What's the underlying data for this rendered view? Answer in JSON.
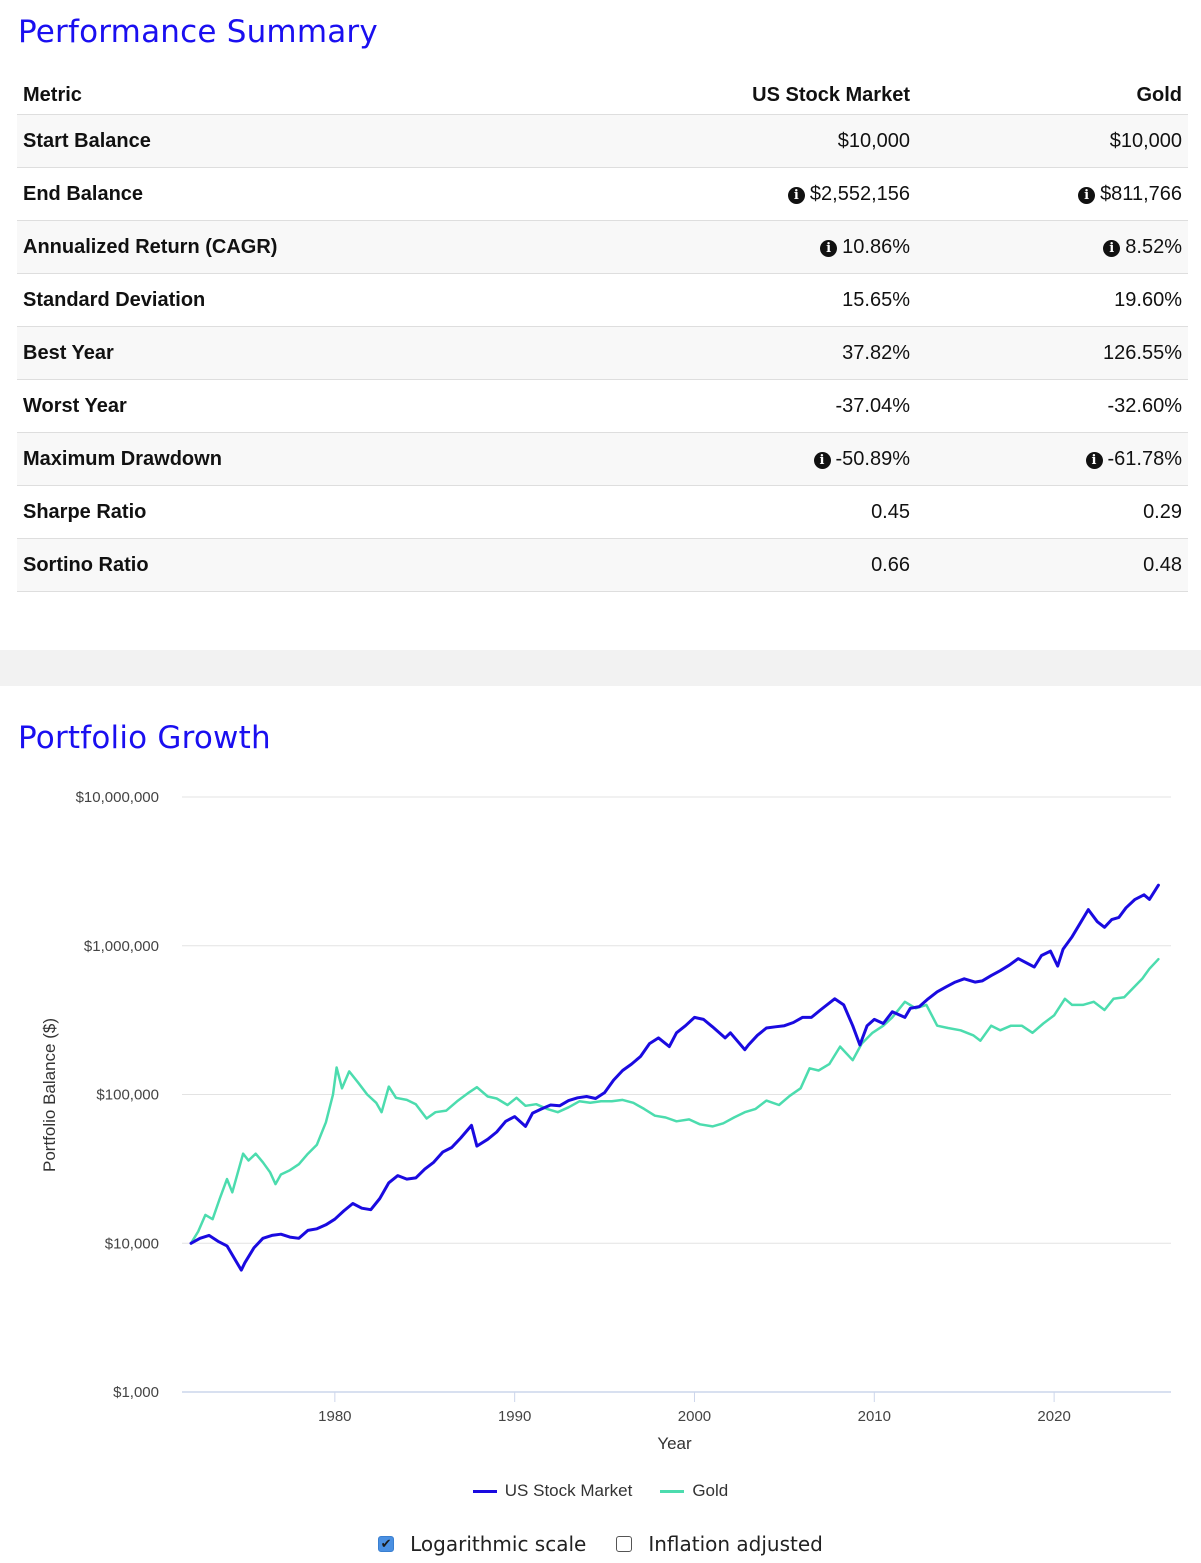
{
  "performance_summary": {
    "title": "Performance Summary",
    "columns": [
      "Metric",
      "US Stock Market",
      "Gold"
    ],
    "rows": [
      {
        "metric": "Start Balance",
        "us": "$10,000",
        "gold": "$10,000",
        "info": false
      },
      {
        "metric": "End Balance",
        "us": "$2,552,156",
        "gold": "$811,766",
        "info": true
      },
      {
        "metric": "Annualized Return (CAGR)",
        "us": "10.86%",
        "gold": "8.52%",
        "info": true
      },
      {
        "metric": "Standard Deviation",
        "us": "15.65%",
        "gold": "19.60%",
        "info": false
      },
      {
        "metric": "Best Year",
        "us": "37.82%",
        "gold": "126.55%",
        "info": false
      },
      {
        "metric": "Worst Year",
        "us": "-37.04%",
        "gold": "-32.60%",
        "info": false
      },
      {
        "metric": "Maximum Drawdown",
        "us": "-50.89%",
        "gold": "-61.78%",
        "info": true
      },
      {
        "metric": "Sharpe Ratio",
        "us": "0.45",
        "gold": "0.29",
        "info": false
      },
      {
        "metric": "Sortino Ratio",
        "us": "0.66",
        "gold": "0.48",
        "info": false
      }
    ],
    "info_icon": "info-circle-icon"
  },
  "portfolio_growth": {
    "title": "Portfolio Growth",
    "controls": {
      "log_scale": {
        "label": "Logarithmic scale",
        "checked": true
      },
      "inflation": {
        "label": "Inflation adjusted",
        "checked": false
      }
    }
  },
  "colors": {
    "title": "#1a0ff0",
    "us_stock": "#1a0ae0",
    "gold": "#4cdcae",
    "grid": "#e3e3e3",
    "axis": "#ccd6eb"
  },
  "chart_data": {
    "type": "line",
    "title": "Portfolio Growth",
    "xlabel": "Year",
    "ylabel": "Portfolio Balance ($)",
    "yscale": "log",
    "ylim": [
      1000,
      10000000
    ],
    "xlim": [
      1971.5,
      2026.5
    ],
    "x_ticks": [
      1980,
      1990,
      2000,
      2010,
      2020
    ],
    "x_tick_labels": [
      "1980",
      "1990",
      "2000",
      "2010",
      "2020"
    ],
    "y_ticks": [
      1000,
      10000,
      100000,
      1000000,
      10000000
    ],
    "y_tick_labels": [
      "$1,000",
      "$10,000",
      "$100,000",
      "$1,000,000",
      "$10,000,000"
    ],
    "grid": true,
    "legend": "bottom-center",
    "series": [
      {
        "name": "US Stock Market",
        "color": "#1a0ae0",
        "points": [
          [
            1972.0,
            10000
          ],
          [
            1972.5,
            10800
          ],
          [
            1973.0,
            11300
          ],
          [
            1973.5,
            10300
          ],
          [
            1974.0,
            9600
          ],
          [
            1974.5,
            7600
          ],
          [
            1974.8,
            6600
          ],
          [
            1975.0,
            7400
          ],
          [
            1975.5,
            9300
          ],
          [
            1976.0,
            10800
          ],
          [
            1976.5,
            11300
          ],
          [
            1977.0,
            11500
          ],
          [
            1977.5,
            11000
          ],
          [
            1978.0,
            10800
          ],
          [
            1978.5,
            12200
          ],
          [
            1979.0,
            12500
          ],
          [
            1979.5,
            13300
          ],
          [
            1980.0,
            14500
          ],
          [
            1980.5,
            16500
          ],
          [
            1981.0,
            18500
          ],
          [
            1981.5,
            17200
          ],
          [
            1982.0,
            16800
          ],
          [
            1982.5,
            20000
          ],
          [
            1983.0,
            25500
          ],
          [
            1983.5,
            28500
          ],
          [
            1984.0,
            27000
          ],
          [
            1984.5,
            27500
          ],
          [
            1985.0,
            31500
          ],
          [
            1985.5,
            35000
          ],
          [
            1986.0,
            41000
          ],
          [
            1986.5,
            44000
          ],
          [
            1987.0,
            51000
          ],
          [
            1987.6,
            62000
          ],
          [
            1987.9,
            45000
          ],
          [
            1988.5,
            50000
          ],
          [
            1989.0,
            56000
          ],
          [
            1989.5,
            66000
          ],
          [
            1990.0,
            71000
          ],
          [
            1990.6,
            61000
          ],
          [
            1991.0,
            75000
          ],
          [
            1991.5,
            80000
          ],
          [
            1992.0,
            85000
          ],
          [
            1992.5,
            84000
          ],
          [
            1993.0,
            91000
          ],
          [
            1993.5,
            95000
          ],
          [
            1994.0,
            97000
          ],
          [
            1994.5,
            94000
          ],
          [
            1995.0,
            103000
          ],
          [
            1995.5,
            125000
          ],
          [
            1996.0,
            145000
          ],
          [
            1996.5,
            160000
          ],
          [
            1997.0,
            180000
          ],
          [
            1997.5,
            220000
          ],
          [
            1998.0,
            240000
          ],
          [
            1998.6,
            210000
          ],
          [
            1999.0,
            260000
          ],
          [
            1999.5,
            290000
          ],
          [
            2000.0,
            330000
          ],
          [
            2000.5,
            320000
          ],
          [
            2001.0,
            285000
          ],
          [
            2001.7,
            240000
          ],
          [
            2002.0,
            260000
          ],
          [
            2002.8,
            200000
          ],
          [
            2003.0,
            215000
          ],
          [
            2003.5,
            250000
          ],
          [
            2004.0,
            280000
          ],
          [
            2004.5,
            285000
          ],
          [
            2005.0,
            290000
          ],
          [
            2005.5,
            305000
          ],
          [
            2006.0,
            330000
          ],
          [
            2006.5,
            330000
          ],
          [
            2007.0,
            370000
          ],
          [
            2007.8,
            440000
          ],
          [
            2008.3,
            400000
          ],
          [
            2008.8,
            290000
          ],
          [
            2009.2,
            215000
          ],
          [
            2009.6,
            290000
          ],
          [
            2010.0,
            320000
          ],
          [
            2010.5,
            300000
          ],
          [
            2011.0,
            360000
          ],
          [
            2011.7,
            330000
          ],
          [
            2012.0,
            380000
          ],
          [
            2012.5,
            390000
          ],
          [
            2013.0,
            440000
          ],
          [
            2013.5,
            490000
          ],
          [
            2014.0,
            530000
          ],
          [
            2014.5,
            570000
          ],
          [
            2015.0,
            600000
          ],
          [
            2015.6,
            570000
          ],
          [
            2016.0,
            580000
          ],
          [
            2016.5,
            630000
          ],
          [
            2017.0,
            680000
          ],
          [
            2017.5,
            740000
          ],
          [
            2018.0,
            820000
          ],
          [
            2018.9,
            720000
          ],
          [
            2019.3,
            860000
          ],
          [
            2019.8,
            920000
          ],
          [
            2020.2,
            730000
          ],
          [
            2020.5,
            950000
          ],
          [
            2021.0,
            1150000
          ],
          [
            2021.5,
            1450000
          ],
          [
            2021.9,
            1750000
          ],
          [
            2022.4,
            1450000
          ],
          [
            2022.8,
            1330000
          ],
          [
            2023.2,
            1500000
          ],
          [
            2023.6,
            1550000
          ],
          [
            2024.0,
            1800000
          ],
          [
            2024.5,
            2050000
          ],
          [
            2025.0,
            2200000
          ],
          [
            2025.3,
            2050000
          ],
          [
            2025.8,
            2552156
          ]
        ]
      },
      {
        "name": "Gold",
        "color": "#4cdcae",
        "points": [
          [
            1972.0,
            10000
          ],
          [
            1972.4,
            12000
          ],
          [
            1972.8,
            15500
          ],
          [
            1973.2,
            14500
          ],
          [
            1973.6,
            20000
          ],
          [
            1974.0,
            27000
          ],
          [
            1974.3,
            22000
          ],
          [
            1974.9,
            40000
          ],
          [
            1975.2,
            36000
          ],
          [
            1975.6,
            40000
          ],
          [
            1976.0,
            35000
          ],
          [
            1976.4,
            30000
          ],
          [
            1976.7,
            25000
          ],
          [
            1977.0,
            29000
          ],
          [
            1977.5,
            31000
          ],
          [
            1978.0,
            34000
          ],
          [
            1978.5,
            40000
          ],
          [
            1979.0,
            46000
          ],
          [
            1979.5,
            65000
          ],
          [
            1979.9,
            100000
          ],
          [
            1980.1,
            152000
          ],
          [
            1980.4,
            110000
          ],
          [
            1980.8,
            143000
          ],
          [
            1981.3,
            120000
          ],
          [
            1981.8,
            100000
          ],
          [
            1982.3,
            88000
          ],
          [
            1982.6,
            76000
          ],
          [
            1983.0,
            113000
          ],
          [
            1983.4,
            95000
          ],
          [
            1984.0,
            92000
          ],
          [
            1984.5,
            86000
          ],
          [
            1985.1,
            69000
          ],
          [
            1985.6,
            76000
          ],
          [
            1986.2,
            78000
          ],
          [
            1986.8,
            90000
          ],
          [
            1987.4,
            102000
          ],
          [
            1987.9,
            112000
          ],
          [
            1988.5,
            97000
          ],
          [
            1989.0,
            94000
          ],
          [
            1989.6,
            85000
          ],
          [
            1990.1,
            95000
          ],
          [
            1990.6,
            84000
          ],
          [
            1991.2,
            86000
          ],
          [
            1991.8,
            80000
          ],
          [
            1992.4,
            76000
          ],
          [
            1993.0,
            82000
          ],
          [
            1993.6,
            90000
          ],
          [
            1994.2,
            88000
          ],
          [
            1994.8,
            90000
          ],
          [
            1995.4,
            90000
          ],
          [
            1996.0,
            92000
          ],
          [
            1996.6,
            88000
          ],
          [
            1997.2,
            80000
          ],
          [
            1997.8,
            72000
          ],
          [
            1998.4,
            70000
          ],
          [
            1999.0,
            66000
          ],
          [
            1999.7,
            68000
          ],
          [
            2000.3,
            63000
          ],
          [
            2001.0,
            61000
          ],
          [
            2001.6,
            64000
          ],
          [
            2002.2,
            70000
          ],
          [
            2002.8,
            76000
          ],
          [
            2003.4,
            80000
          ],
          [
            2004.0,
            91000
          ],
          [
            2004.7,
            85000
          ],
          [
            2005.3,
            98000
          ],
          [
            2005.9,
            110000
          ],
          [
            2006.4,
            150000
          ],
          [
            2006.9,
            145000
          ],
          [
            2007.5,
            160000
          ],
          [
            2008.1,
            210000
          ],
          [
            2008.8,
            170000
          ],
          [
            2009.3,
            220000
          ],
          [
            2009.9,
            260000
          ],
          [
            2010.5,
            290000
          ],
          [
            2011.0,
            330000
          ],
          [
            2011.7,
            420000
          ],
          [
            2012.3,
            380000
          ],
          [
            2012.9,
            400000
          ],
          [
            2013.5,
            290000
          ],
          [
            2014.1,
            280000
          ],
          [
            2014.8,
            270000
          ],
          [
            2015.5,
            250000
          ],
          [
            2015.9,
            230000
          ],
          [
            2016.5,
            290000
          ],
          [
            2017.0,
            270000
          ],
          [
            2017.6,
            290000
          ],
          [
            2018.2,
            290000
          ],
          [
            2018.8,
            260000
          ],
          [
            2019.4,
            300000
          ],
          [
            2020.0,
            340000
          ],
          [
            2020.6,
            440000
          ],
          [
            2021.0,
            400000
          ],
          [
            2021.6,
            400000
          ],
          [
            2022.2,
            420000
          ],
          [
            2022.8,
            370000
          ],
          [
            2023.3,
            440000
          ],
          [
            2023.9,
            450000
          ],
          [
            2024.4,
            520000
          ],
          [
            2024.9,
            600000
          ],
          [
            2025.3,
            700000
          ],
          [
            2025.8,
            811766
          ]
        ]
      }
    ]
  }
}
